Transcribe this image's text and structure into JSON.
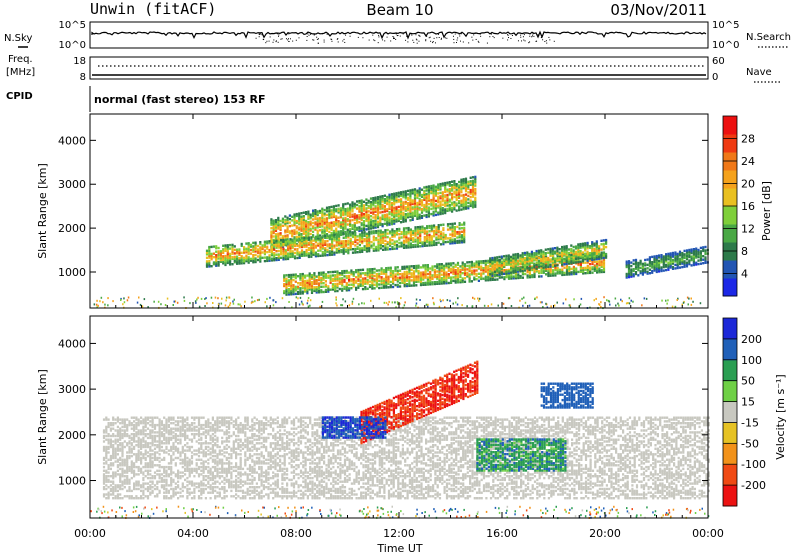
{
  "header": {
    "station": "Unwin (fitACF)",
    "beam": "Beam 10",
    "date": "03/Nov/2011"
  },
  "status": {
    "nsky_label": "N.Sky",
    "nsky_ticks": [
      "10^5",
      "10^0"
    ],
    "nsearch_label": "N.Search",
    "nsearch_ticks": [
      "10^5",
      "10^0"
    ],
    "freq_label": "Freq.",
    "freq_unit": "[MHz]",
    "freq_ticks": [
      "18",
      "8"
    ],
    "nave_label": "Nave",
    "nave_ticks": [
      "60",
      "0"
    ],
    "cpid_label": "CPID",
    "cpid_text": "normal (fast stereo) 153 RF"
  },
  "chart_data": [
    {
      "type": "heatmap",
      "title": "",
      "xlabel": "",
      "ylabel": "Slant Range [km]",
      "x_ticks": [
        "00:00",
        "04:00",
        "08:00",
        "12:00",
        "16:00",
        "20:00",
        "00:00"
      ],
      "x_range_hours": [
        0,
        24
      ],
      "y_ticks": [
        1000,
        2000,
        3000,
        4000
      ],
      "ylim": [
        180,
        4600
      ],
      "colorbar": {
        "label": "Power [dB]",
        "ticks": [
          4,
          8,
          12,
          16,
          20,
          24,
          28
        ],
        "range": [
          0,
          32
        ],
        "colors": [
          "#1c28e6",
          "#2255b3",
          "#2d7a4a",
          "#49a845",
          "#7fcf3a",
          "#e9c021",
          "#f5a21c",
          "#f07818",
          "#ef3a12",
          "#ec1010"
        ]
      },
      "features": [
        {
          "name": "upper band",
          "t_start": 7.0,
          "t_end": 15.0,
          "range_start": 1850,
          "range_end": 3250,
          "peak": 27
        },
        {
          "name": "middle band",
          "t_start": 4.5,
          "t_end": 14.5,
          "range_start": 1350,
          "range_end": 2150,
          "peak": 26
        },
        {
          "name": "lower band",
          "t_start": 7.5,
          "t_end": 20.0,
          "range_start": 700,
          "range_end": 1450,
          "peak": 27
        },
        {
          "name": "evening echoes",
          "t_start": 15.5,
          "t_end": 20.0,
          "range_start": 1100,
          "range_end": 1700,
          "peak": 22
        },
        {
          "name": "late echoes",
          "t_start": 20.8,
          "t_end": 24.0,
          "range_start": 1050,
          "range_end": 1550,
          "peak": 14
        }
      ]
    },
    {
      "type": "heatmap",
      "title": "",
      "xlabel": "Time UT",
      "ylabel": "Slant Range [km]",
      "x_ticks": [
        "00:00",
        "04:00",
        "08:00",
        "12:00",
        "16:00",
        "20:00",
        "00:00"
      ],
      "x_range_hours": [
        0,
        24
      ],
      "y_ticks": [
        1000,
        2000,
        3000,
        4000
      ],
      "ylim": [
        180,
        4600
      ],
      "colorbar": {
        "label": "Velocity [m s⁻¹]",
        "ticks": [
          -200,
          -100,
          -50,
          -15,
          15,
          50,
          100,
          200
        ],
        "range": [
          -250,
          250
        ],
        "colors": [
          "#ec1212",
          "#f04a14",
          "#f2921a",
          "#e6c224",
          "#c8c8c0",
          "#6fd046",
          "#2a9e52",
          "#2060b8",
          "#1c28d8"
        ]
      },
      "features": [
        {
          "name": "ground scatter",
          "t_start": 0.5,
          "t_end": 24.0,
          "range_start": 600,
          "range_end": 2400,
          "velocity": 0
        },
        {
          "name": "negative flow",
          "t_start": 10.5,
          "t_end": 15.0,
          "range_start": 2150,
          "range_end": 3250,
          "velocity": -200
        },
        {
          "name": "positive flow",
          "t_start": 9.0,
          "t_end": 11.5,
          "range_start": 1900,
          "range_end": 2400,
          "velocity": 200
        },
        {
          "name": "moderate positive",
          "t_start": 15.0,
          "t_end": 18.5,
          "range_start": 1000,
          "range_end": 2100,
          "velocity": 80
        },
        {
          "name": "far echoes",
          "t_start": 17.5,
          "t_end": 19.5,
          "range_start": 2500,
          "range_end": 3200,
          "velocity": 150
        }
      ]
    }
  ]
}
